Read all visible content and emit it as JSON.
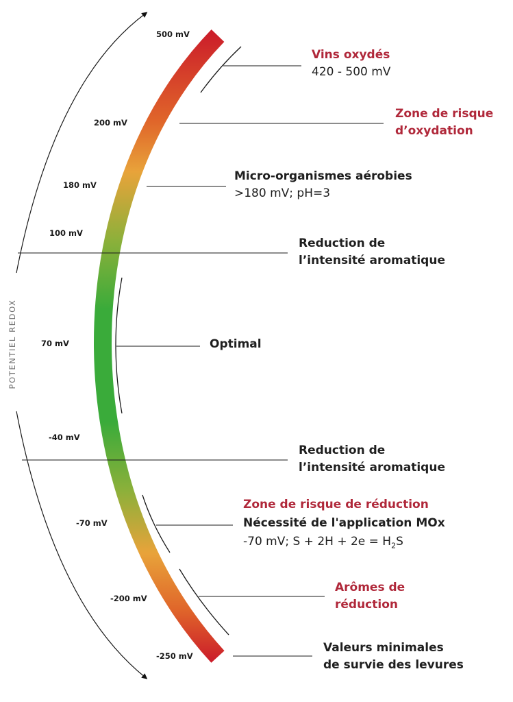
{
  "axis": {
    "title": "POTENTIEL REDOX"
  },
  "ticks": [
    "500 mV",
    "200 mV",
    "180 mV",
    "100 mV",
    "70 mV",
    "-40 mV",
    "-70 mV",
    "-200 mV",
    "-250 mV"
  ],
  "annotations": {
    "vins": {
      "title": "Vins oxydés",
      "sub": "420 - 500 mV"
    },
    "oxydation": {
      "line1": "Zone de risque",
      "line2": "d’oxydation"
    },
    "micro": {
      "title": "Micro-organismes aérobies",
      "sub": ">180 mV; pH=3"
    },
    "reduction_top": {
      "line1": "Reduction de",
      "line2": "l’intensité aromatique"
    },
    "optimal": {
      "title": "Optimal"
    },
    "reduction_bottom": {
      "line1": "Reduction de",
      "line2": "l’intensité aromatique"
    },
    "zone_reduction": {
      "title": "Zone de risque de réduction",
      "line2": "Nécessité de l'application MOx",
      "formula_pre": "-70 mV; S + 2H + 2e = H",
      "formula_sub": "2",
      "formula_post": "S"
    },
    "aromes": {
      "line1": "Arômes de",
      "line2": "réduction"
    },
    "valeurs": {
      "line1": "Valeurs minimales",
      "line2": "de survie des levures"
    }
  },
  "colors": {
    "oxidized": "#cc1f2a",
    "warning": "#e8a33a",
    "optimal": "#3aab3a",
    "accent_text": "#b0283a"
  }
}
